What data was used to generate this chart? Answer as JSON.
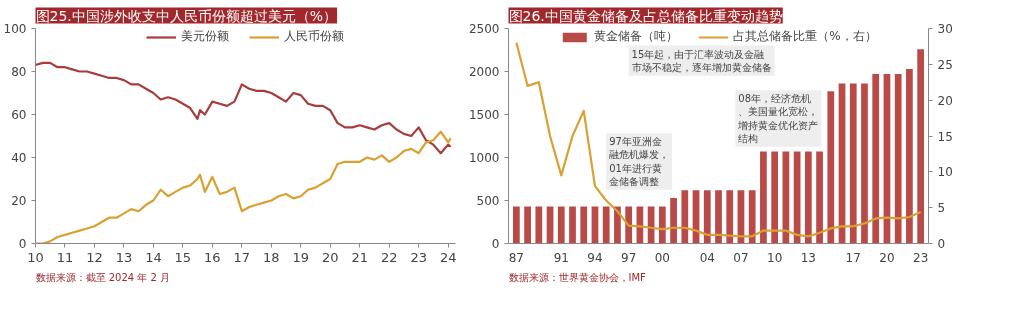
{
  "chart_data": [
    {
      "type": "line",
      "title": "图25.中国涉外收支中人民币份额超过美元（%）",
      "annotations": [
        "数据来源：截至 2024 年 2 月"
      ],
      "x": [
        "2010-01",
        "2010-04",
        "2010-07",
        "2010-10",
        "2011-01",
        "2011-04",
        "2011-07",
        "2011-10",
        "2012-01",
        "2012-04",
        "2012-07",
        "2012-10",
        "2013-01",
        "2013-04",
        "2013-07",
        "2013-10",
        "2014-01",
        "2014-04",
        "2014-07",
        "2014-10",
        "2015-01",
        "2015-04",
        "2015-07",
        "2015-08",
        "2015-10",
        "2016-01",
        "2016-04",
        "2016-07",
        "2016-10",
        "2017-01",
        "2017-04",
        "2017-07",
        "2017-10",
        "2018-01",
        "2018-04",
        "2018-07",
        "2018-10",
        "2019-01",
        "2019-04",
        "2019-07",
        "2019-10",
        "2020-01",
        "2020-04",
        "2020-07",
        "2020-10",
        "2021-01",
        "2021-04",
        "2021-07",
        "2021-10",
        "2022-01",
        "2022-04",
        "2022-07",
        "2022-10",
        "2023-01",
        "2023-04",
        "2023-07",
        "2023-10",
        "2024-01",
        "2024-02"
      ],
      "series": [
        {
          "name": "美元份额",
          "color": "#a83c3c",
          "values": [
            83,
            84,
            84,
            82,
            82,
            81,
            80,
            80,
            79,
            78,
            77,
            77,
            76,
            74,
            74,
            72,
            70,
            67,
            68,
            67,
            65,
            63,
            58,
            62,
            60,
            66,
            65,
            64,
            66,
            74,
            72,
            71,
            71,
            70,
            68,
            66,
            70,
            69,
            65,
            64,
            64,
            62,
            56,
            54,
            54,
            55,
            54,
            53,
            55,
            56,
            53,
            51,
            50,
            54,
            48,
            46,
            42,
            46,
            45
          ]
        },
        {
          "name": "人民币份额",
          "color": "#d9a032",
          "values": [
            0,
            0,
            1,
            3,
            4,
            5,
            6,
            7,
            8,
            10,
            12,
            12,
            14,
            16,
            15,
            18,
            20,
            25,
            22,
            24,
            26,
            27,
            30,
            32,
            24,
            31,
            23,
            24,
            26,
            15,
            17,
            18,
            19,
            20,
            22,
            23,
            21,
            22,
            25,
            26,
            28,
            30,
            37,
            38,
            38,
            38,
            40,
            39,
            41,
            38,
            40,
            43,
            44,
            42,
            47,
            48,
            52,
            47,
            49
          ]
        }
      ],
      "xlim": [
        "2010-01",
        "2024-04"
      ],
      "xticks": [
        {
          "value": "2010",
          "label": "10"
        },
        {
          "value": "2011",
          "label": "11"
        },
        {
          "value": "2012",
          "label": "12"
        },
        {
          "value": "2013",
          "label": "13"
        },
        {
          "value": "2014",
          "label": "14"
        },
        {
          "value": "2015",
          "label": "15"
        },
        {
          "value": "2016",
          "label": "16"
        },
        {
          "value": "2017",
          "label": "17"
        },
        {
          "value": "2018",
          "label": "18"
        },
        {
          "value": "2019",
          "label": "19"
        },
        {
          "value": "2020",
          "label": "20"
        },
        {
          "value": "2021",
          "label": "21"
        },
        {
          "value": "2022",
          "label": "22"
        },
        {
          "value": "2023",
          "label": "23"
        },
        {
          "value": "2024",
          "label": "24"
        }
      ],
      "ylim": [
        0,
        100
      ],
      "yticks": [
        0,
        20,
        40,
        60,
        80,
        100
      ],
      "grid": false,
      "legend": "top"
    },
    {
      "type": "bar",
      "title": "图26.中国黄金储备及占总储备比重变动趋势",
      "annotations": [
        "97年亚洲金融危机爆发，01年进行黄金储备调整",
        "08年，经济危机、美国量化宽松，增持黄金优化资产结构",
        "15年起，由于汇率波动及金融市场不稳定，逐年增加黄金储备",
        "数据来源：世界黄金协会，IMF"
      ],
      "categories": [
        "87",
        null,
        null,
        null,
        "91",
        null,
        null,
        "94",
        null,
        null,
        "97",
        null,
        null,
        "00",
        null,
        null,
        null,
        "04",
        null,
        null,
        "07",
        null,
        null,
        "10",
        null,
        null,
        "13",
        null,
        null,
        null,
        "17",
        null,
        null,
        "20",
        null,
        null,
        "23"
      ],
      "series": [
        {
          "name": "黄金储备（吨）",
          "type": "bar",
          "color": "#b94a48",
          "values": [
            430,
            430,
            430,
            430,
            430,
            430,
            430,
            430,
            430,
            430,
            430,
            430,
            430,
            430,
            530,
            620,
            620,
            620,
            620,
            620,
            620,
            620,
            1070,
            1070,
            1070,
            1070,
            1070,
            1070,
            1770,
            1860,
            1860,
            1860,
            1970,
            1970,
            1970,
            2030,
            2260
          ]
        },
        {
          "name": "占其总储备比重（%，右）",
          "type": "line",
          "axis": "y2",
          "color": "#d9a032",
          "values": [
            28,
            22,
            22.5,
            15,
            9.5,
            15,
            18.5,
            8,
            6,
            4.5,
            2.5,
            2.4,
            2.2,
            2,
            2.2,
            2.2,
            1.8,
            1.2,
            1.2,
            1.1,
            1,
            1,
            1.8,
            1.8,
            1.8,
            1.2,
            1,
            1.5,
            2.1,
            2.4,
            2.4,
            2.8,
            3.5,
            3.6,
            3.5,
            3.7,
            4.4
          ]
        }
      ],
      "ylim": [
        0,
        2500
      ],
      "yticks": [
        0,
        500,
        1000,
        1500,
        2000,
        2500
      ],
      "y2lim": [
        0,
        30
      ],
      "y2ticks": [
        0,
        5,
        10,
        15,
        20,
        25,
        30
      ],
      "grid": false,
      "legend": "top"
    }
  ]
}
